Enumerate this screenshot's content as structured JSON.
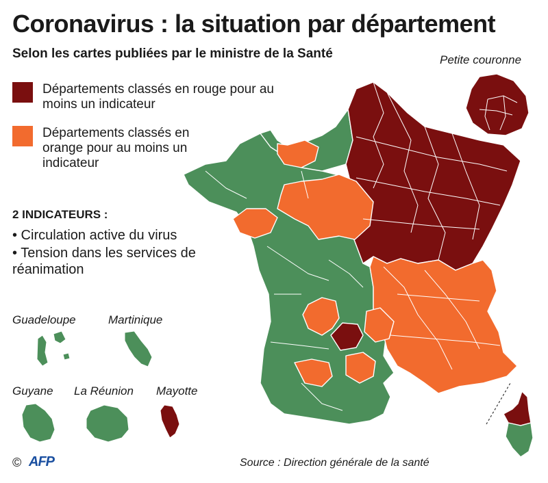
{
  "header": {
    "title": "Coronavirus : la situation par département",
    "subtitle": "Selon les cartes publiées par le ministre de la Santé"
  },
  "legend": {
    "red_label": "Départements classés en rouge pour au moins un indicateur",
    "orange_label": "Départements classés en orange pour au moins un indicateur"
  },
  "indicators": {
    "title": "2 INDICATEURS :",
    "items": [
      "• Circulation active du virus",
      "• Tension dans les services de réanimation"
    ]
  },
  "insets": {
    "petite_couronne": "Petite couronne",
    "guadeloupe": "Guadeloupe",
    "martinique": "Martinique",
    "guyane": "Guyane",
    "reunion": "La Réunion",
    "mayotte": "Mayotte"
  },
  "territory_status": {
    "petite_couronne": "red",
    "guadeloupe": "green",
    "martinique": "green",
    "guyane": "green",
    "reunion": "green",
    "mayotte": "red",
    "corsica_north": "red",
    "corsica_south": "green"
  },
  "colors": {
    "red": "#7a0f0f",
    "orange": "#f26b2e",
    "green": "#4c8f5a",
    "border": "#ffffff",
    "brand": "#1a4fa0"
  },
  "footer": {
    "copyright": "©",
    "logo": "AFP",
    "source": "Source : Direction générale de la santé"
  }
}
